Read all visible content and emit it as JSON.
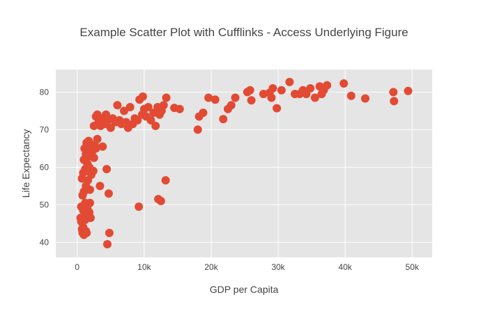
{
  "chart_data": {
    "type": "scatter",
    "title": "Example Scatter Plot with Cufflinks - Access Underlying Figure",
    "xlabel": "GDP per Capita",
    "ylabel": "Life Expectancy",
    "xlim": [
      -3200,
      53000
    ],
    "ylim": [
      36,
      86
    ],
    "x_ticks": [
      0,
      10000,
      20000,
      30000,
      40000,
      50000
    ],
    "x_tick_labels": [
      "0",
      "10k",
      "20k",
      "30k",
      "40k",
      "50k"
    ],
    "y_ticks": [
      40,
      50,
      60,
      70,
      80
    ],
    "y_tick_labels": [
      "40",
      "50",
      "60",
      "70",
      "80"
    ],
    "grid": true,
    "legend": "none",
    "marker_color": "#e24a33",
    "plot_bg": "#e5e5e5",
    "series": [
      {
        "points": [
          [
            500,
            46.5
          ],
          [
            600,
            45.5
          ],
          [
            700,
            43.5
          ],
          [
            800,
            42.5
          ],
          [
            900,
            44.0
          ],
          [
            1000,
            42.0
          ],
          [
            1100,
            47.0
          ],
          [
            1200,
            46.0
          ],
          [
            1300,
            43.0
          ],
          [
            1400,
            42.5
          ],
          [
            600,
            49.5
          ],
          [
            900,
            48.5
          ],
          [
            1200,
            50.5
          ],
          [
            1500,
            49.0
          ],
          [
            1800,
            48.0
          ],
          [
            1900,
            50.5
          ],
          [
            2000,
            46.5
          ],
          [
            800,
            52.5
          ],
          [
            1000,
            53.5
          ],
          [
            1300,
            55.0
          ],
          [
            1600,
            56.5
          ],
          [
            1900,
            54.0
          ],
          [
            700,
            57.0
          ],
          [
            900,
            58.5
          ],
          [
            1200,
            59.5
          ],
          [
            1500,
            61.0
          ],
          [
            1800,
            60.0
          ],
          [
            2100,
            58.0
          ],
          [
            2400,
            59.0
          ],
          [
            1000,
            62.0
          ],
          [
            1300,
            63.5
          ],
          [
            1600,
            64.5
          ],
          [
            1900,
            63.0
          ],
          [
            2200,
            64.0
          ],
          [
            2500,
            62.5
          ],
          [
            2800,
            65.0
          ],
          [
            1100,
            65.0
          ],
          [
            1400,
            66.5
          ],
          [
            1700,
            67.0
          ],
          [
            2000,
            65.5
          ],
          [
            2600,
            66.0
          ],
          [
            3000,
            67.5
          ],
          [
            3400,
            55.0
          ],
          [
            3800,
            65.5
          ],
          [
            4400,
            59.5
          ],
          [
            4700,
            53.0
          ],
          [
            4500,
            39.5
          ],
          [
            4800,
            42.5
          ],
          [
            2500,
            71.0
          ],
          [
            2800,
            73.5
          ],
          [
            3000,
            74.0
          ],
          [
            3200,
            72.0
          ],
          [
            3500,
            71.0
          ],
          [
            3700,
            73.0
          ],
          [
            3900,
            72.5
          ],
          [
            4100,
            71.5
          ],
          [
            4300,
            74.0
          ],
          [
            4600,
            72.5
          ],
          [
            5000,
            70.5
          ],
          [
            5300,
            73.0
          ],
          [
            5700,
            72.0
          ],
          [
            6000,
            76.5
          ],
          [
            6300,
            72.5
          ],
          [
            6600,
            71.5
          ],
          [
            7000,
            75.0
          ],
          [
            7300,
            72.0
          ],
          [
            7600,
            70.5
          ],
          [
            7900,
            76.0
          ],
          [
            8300,
            71.5
          ],
          [
            8600,
            73.0
          ],
          [
            9000,
            72.5
          ],
          [
            9300,
            78.0
          ],
          [
            9700,
            74.0
          ],
          [
            10000,
            75.5
          ],
          [
            10300,
            73.5
          ],
          [
            10600,
            76.0
          ],
          [
            11000,
            72.5
          ],
          [
            11400,
            74.5
          ],
          [
            11700,
            71.0
          ],
          [
            12000,
            76.0
          ],
          [
            12300,
            74.0
          ],
          [
            12600,
            75.0
          ],
          [
            12900,
            76.5
          ],
          [
            13300,
            78.5
          ],
          [
            9800,
            78.8
          ],
          [
            9200,
            49.5
          ],
          [
            12100,
            51.5
          ],
          [
            12500,
            51.0
          ],
          [
            13200,
            56.5
          ],
          [
            14500,
            75.8
          ],
          [
            15300,
            75.5
          ],
          [
            18000,
            70.0
          ],
          [
            18200,
            73.5
          ],
          [
            18800,
            74.5
          ],
          [
            19600,
            78.5
          ],
          [
            20600,
            78.0
          ],
          [
            21800,
            72.8
          ],
          [
            22500,
            75.5
          ],
          [
            23000,
            76.5
          ],
          [
            23600,
            78.5
          ],
          [
            25400,
            80.0
          ],
          [
            25800,
            80.5
          ],
          [
            26000,
            77.8
          ],
          [
            27800,
            79.5
          ],
          [
            28700,
            79.8
          ],
          [
            29200,
            81.0
          ],
          [
            29000,
            78.5
          ],
          [
            29800,
            75.7
          ],
          [
            30500,
            80.5
          ],
          [
            31700,
            82.7
          ],
          [
            32500,
            79.5
          ],
          [
            33200,
            79.5
          ],
          [
            33700,
            80.5
          ],
          [
            34200,
            79.5
          ],
          [
            34800,
            81.0
          ],
          [
            35500,
            78.5
          ],
          [
            36200,
            81.5
          ],
          [
            36800,
            80.5
          ],
          [
            37300,
            81.8
          ],
          [
            36500,
            79.5
          ],
          [
            39800,
            82.3
          ],
          [
            40900,
            79.0
          ],
          [
            43000,
            78.3
          ],
          [
            47200,
            80.0
          ],
          [
            47300,
            77.6
          ],
          [
            49400,
            80.3
          ]
        ]
      }
    ]
  }
}
